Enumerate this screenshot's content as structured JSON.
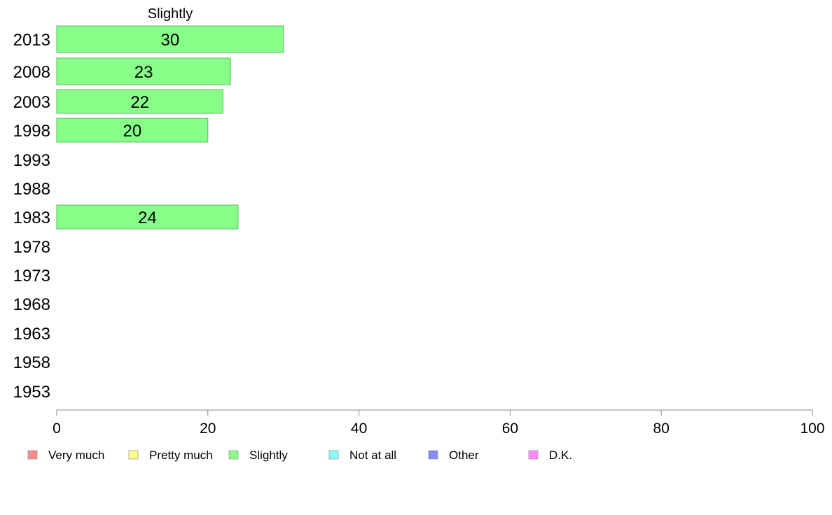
{
  "chart_data": {
    "type": "bar",
    "orientation": "horizontal",
    "title": "Slightly",
    "categories": [
      "2013",
      "2008",
      "2003",
      "1998",
      "1993",
      "1988",
      "1983",
      "1978",
      "1973",
      "1968",
      "1963",
      "1958",
      "1953"
    ],
    "series": [
      {
        "name": "Slightly",
        "color": "#88ff88",
        "values": [
          30,
          23,
          22,
          20,
          null,
          null,
          24,
          null,
          null,
          null,
          null,
          null,
          null
        ]
      }
    ],
    "xlim": [
      0,
      100
    ],
    "xticks": [
      "0",
      "20",
      "40",
      "60",
      "80",
      "100"
    ],
    "grid": false,
    "legend": {
      "placement": "bottom-left",
      "entries": [
        {
          "label": "Very much",
          "color": "#ff8888"
        },
        {
          "label": "Pretty much",
          "color": "#ffff88"
        },
        {
          "label": "Slightly",
          "color": "#88ff88"
        },
        {
          "label": "Not at all",
          "color": "#88ffff"
        },
        {
          "label": "Other",
          "color": "#8888ff"
        },
        {
          "label": "D.K.",
          "color": "#ff88ff"
        }
      ]
    }
  }
}
